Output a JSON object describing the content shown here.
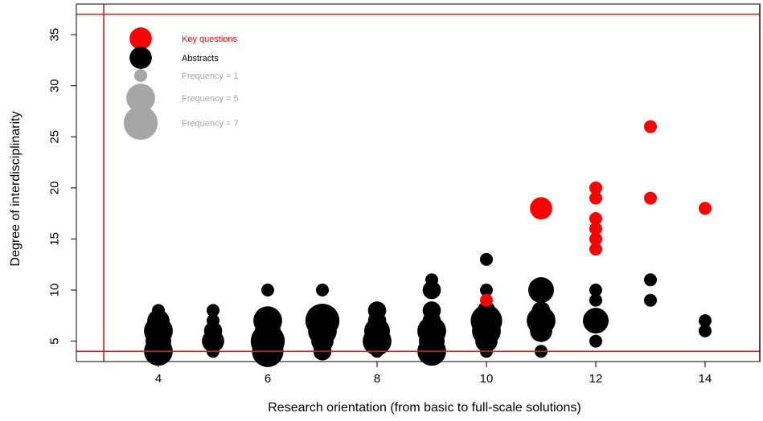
{
  "chart_data": {
    "type": "scatter",
    "title": "",
    "xlabel": "Research orientation (from basic to full-scale solutions)",
    "ylabel": "Degree of interdisciplinarity",
    "xlim": [
      2.5,
      15
    ],
    "ylim": [
      3,
      38
    ],
    "x_ticks": [
      "4",
      "6",
      "8",
      "10",
      "12",
      "14"
    ],
    "y_ticks": [
      "5",
      "10",
      "15",
      "20",
      "25",
      "30",
      "35"
    ],
    "reference_lines": {
      "x": [
        3,
        15
      ],
      "y": [
        4,
        37
      ],
      "color": "#e41a1c"
    },
    "legend": {
      "position": "top-left",
      "items": [
        {
          "label": "Key questions",
          "color": "#ff0000",
          "frequency": 3
        },
        {
          "label": "Abstracts",
          "color": "#000000",
          "frequency": 3
        },
        {
          "label": "Frequency = 1",
          "color": "#a6a6a6",
          "frequency": 1
        },
        {
          "label": "Frequency = 5",
          "color": "#a6a6a6",
          "frequency": 5
        },
        {
          "label": "Frequency = 7",
          "color": "#a6a6a6",
          "frequency": 7
        }
      ]
    },
    "series": [
      {
        "name": "Abstracts",
        "color": "#000000",
        "points": [
          {
            "x": 4,
            "y": 4,
            "frequency": 5
          },
          {
            "x": 4,
            "y": 5,
            "frequency": 4
          },
          {
            "x": 4,
            "y": 6,
            "frequency": 5
          },
          {
            "x": 4,
            "y": 7,
            "frequency": 3
          },
          {
            "x": 4,
            "y": 8,
            "frequency": 1
          },
          {
            "x": 5,
            "y": 4,
            "frequency": 1
          },
          {
            "x": 5,
            "y": 5,
            "frequency": 3
          },
          {
            "x": 5,
            "y": 6,
            "frequency": 2
          },
          {
            "x": 5,
            "y": 7,
            "frequency": 1
          },
          {
            "x": 5,
            "y": 8,
            "frequency": 1
          },
          {
            "x": 6,
            "y": 4,
            "frequency": 6
          },
          {
            "x": 6,
            "y": 5,
            "frequency": 7
          },
          {
            "x": 6,
            "y": 6,
            "frequency": 4
          },
          {
            "x": 6,
            "y": 7,
            "frequency": 5
          },
          {
            "x": 6,
            "y": 10,
            "frequency": 1
          },
          {
            "x": 7,
            "y": 4,
            "frequency": 2
          },
          {
            "x": 7,
            "y": 5,
            "frequency": 3
          },
          {
            "x": 7,
            "y": 6,
            "frequency": 5
          },
          {
            "x": 7,
            "y": 7,
            "frequency": 7
          },
          {
            "x": 7,
            "y": 10,
            "frequency": 1
          },
          {
            "x": 8,
            "y": 4,
            "frequency": 1
          },
          {
            "x": 8,
            "y": 5,
            "frequency": 5
          },
          {
            "x": 8,
            "y": 6,
            "frequency": 4
          },
          {
            "x": 8,
            "y": 7,
            "frequency": 2
          },
          {
            "x": 8,
            "y": 8,
            "frequency": 2
          },
          {
            "x": 9,
            "y": 4,
            "frequency": 5
          },
          {
            "x": 9,
            "y": 5,
            "frequency": 4
          },
          {
            "x": 9,
            "y": 6,
            "frequency": 5
          },
          {
            "x": 9,
            "y": 7,
            "frequency": 2
          },
          {
            "x": 9,
            "y": 8,
            "frequency": 2
          },
          {
            "x": 9,
            "y": 10,
            "frequency": 2
          },
          {
            "x": 9,
            "y": 11,
            "frequency": 1
          },
          {
            "x": 10,
            "y": 4,
            "frequency": 1
          },
          {
            "x": 10,
            "y": 5,
            "frequency": 3
          },
          {
            "x": 10,
            "y": 6,
            "frequency": 5
          },
          {
            "x": 10,
            "y": 7,
            "frequency": 6
          },
          {
            "x": 10,
            "y": 8,
            "frequency": 2
          },
          {
            "x": 10,
            "y": 10,
            "frequency": 1
          },
          {
            "x": 10,
            "y": 13,
            "frequency": 1
          },
          {
            "x": 11,
            "y": 4,
            "frequency": 1
          },
          {
            "x": 11,
            "y": 6,
            "frequency": 3
          },
          {
            "x": 11,
            "y": 7,
            "frequency": 5
          },
          {
            "x": 11,
            "y": 8,
            "frequency": 2
          },
          {
            "x": 11,
            "y": 10,
            "frequency": 4
          },
          {
            "x": 12,
            "y": 5,
            "frequency": 1
          },
          {
            "x": 12,
            "y": 7,
            "frequency": 4
          },
          {
            "x": 12,
            "y": 9,
            "frequency": 1
          },
          {
            "x": 12,
            "y": 10,
            "frequency": 1
          },
          {
            "x": 13,
            "y": 9,
            "frequency": 1
          },
          {
            "x": 13,
            "y": 11,
            "frequency": 1
          },
          {
            "x": 14,
            "y": 6,
            "frequency": 1
          },
          {
            "x": 14,
            "y": 7,
            "frequency": 1
          }
        ]
      },
      {
        "name": "Key questions",
        "color": "#ff0000",
        "points": [
          {
            "x": 10,
            "y": 9,
            "frequency": 1
          },
          {
            "x": 11,
            "y": 18,
            "frequency": 3
          },
          {
            "x": 12,
            "y": 14,
            "frequency": 1
          },
          {
            "x": 12,
            "y": 15,
            "frequency": 1
          },
          {
            "x": 12,
            "y": 16,
            "frequency": 1
          },
          {
            "x": 12,
            "y": 17,
            "frequency": 1
          },
          {
            "x": 12,
            "y": 19,
            "frequency": 1
          },
          {
            "x": 12,
            "y": 20,
            "frequency": 1
          },
          {
            "x": 13,
            "y": 19,
            "frequency": 1
          },
          {
            "x": 13,
            "y": 26,
            "frequency": 1
          },
          {
            "x": 14,
            "y": 18,
            "frequency": 1
          }
        ]
      }
    ]
  }
}
